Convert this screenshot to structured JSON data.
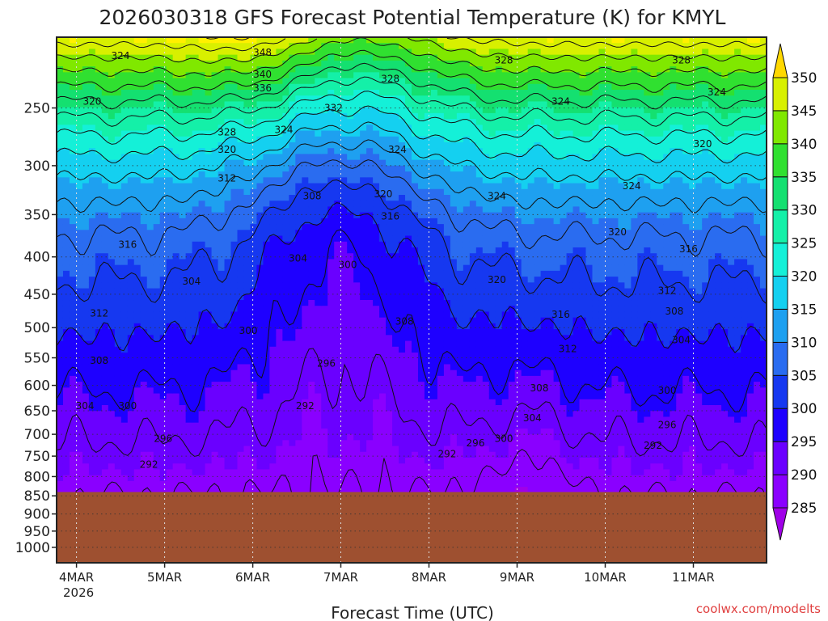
{
  "chart_data": {
    "type": "heatmap",
    "title": "2026030318 GFS Forecast Potential Temperature (K) for KMYL",
    "xlabel": "Forecast Time (UTC)",
    "ylabel": "",
    "x_ticks": [
      "4MAR",
      "5MAR",
      "6MAR",
      "7MAR",
      "8MAR",
      "9MAR",
      "10MAR",
      "11MAR"
    ],
    "x_year_label": "2026",
    "y_ticks": [
      250,
      300,
      350,
      400,
      450,
      500,
      550,
      600,
      650,
      700,
      750,
      800,
      850,
      900,
      950,
      1000
    ],
    "y_range": [
      1050,
      200
    ],
    "grid": true,
    "legend": "colorbar-right",
    "colorbar": {
      "levels": [
        285,
        290,
        295,
        300,
        305,
        310,
        315,
        320,
        325,
        330,
        335,
        340,
        345,
        350
      ],
      "colors": [
        "#8a00ff",
        "#6a00ff",
        "#1e00ff",
        "#1638f0",
        "#2a6cf0",
        "#1ea0f0",
        "#14d0f0",
        "#14f0d8",
        "#14f0a8",
        "#14e070",
        "#30e030",
        "#80e800",
        "#d8f000",
        "#fff000"
      ],
      "under_color": "#a000e8",
      "over_color": "#ffd800"
    },
    "ground_color": "#9e5030",
    "ground_top_hpa": 840,
    "contour_labels": [
      {
        "text": "348",
        "x": 0.29,
        "p": 210
      },
      {
        "text": "340",
        "x": 0.29,
        "p": 225
      },
      {
        "text": "336",
        "x": 0.29,
        "p": 235
      },
      {
        "text": "332",
        "x": 0.39,
        "p": 250
      },
      {
        "text": "328",
        "x": 0.24,
        "p": 270
      },
      {
        "text": "324",
        "x": 0.32,
        "p": 268
      },
      {
        "text": "320",
        "x": 0.24,
        "p": 285
      },
      {
        "text": "312",
        "x": 0.24,
        "p": 312
      },
      {
        "text": "308",
        "x": 0.36,
        "p": 330
      },
      {
        "text": "316",
        "x": 0.47,
        "p": 352
      },
      {
        "text": "304",
        "x": 0.34,
        "p": 402
      },
      {
        "text": "300",
        "x": 0.41,
        "p": 410
      },
      {
        "text": "304",
        "x": 0.19,
        "p": 432
      },
      {
        "text": "300",
        "x": 0.27,
        "p": 505
      },
      {
        "text": "296",
        "x": 0.38,
        "p": 560
      },
      {
        "text": "292",
        "x": 0.35,
        "p": 640
      },
      {
        "text": "296",
        "x": 0.15,
        "p": 710
      },
      {
        "text": "292",
        "x": 0.13,
        "p": 770
      },
      {
        "text": "300",
        "x": 0.1,
        "p": 640
      },
      {
        "text": "304",
        "x": 0.04,
        "p": 640
      },
      {
        "text": "308",
        "x": 0.06,
        "p": 555
      },
      {
        "text": "312",
        "x": 0.06,
        "p": 478
      },
      {
        "text": "316",
        "x": 0.1,
        "p": 385
      },
      {
        "text": "320",
        "x": 0.05,
        "p": 245
      },
      {
        "text": "324",
        "x": 0.09,
        "p": 212
      },
      {
        "text": "328",
        "x": 0.47,
        "p": 228
      },
      {
        "text": "324",
        "x": 0.48,
        "p": 285
      },
      {
        "text": "320",
        "x": 0.46,
        "p": 328
      },
      {
        "text": "308",
        "x": 0.49,
        "p": 490
      },
      {
        "text": "328",
        "x": 0.63,
        "p": 215
      },
      {
        "text": "324",
        "x": 0.62,
        "p": 330
      },
      {
        "text": "320",
        "x": 0.62,
        "p": 430
      },
      {
        "text": "292",
        "x": 0.55,
        "p": 745
      },
      {
        "text": "296",
        "x": 0.59,
        "p": 720
      },
      {
        "text": "300",
        "x": 0.63,
        "p": 710
      },
      {
        "text": "304",
        "x": 0.67,
        "p": 665
      },
      {
        "text": "308",
        "x": 0.68,
        "p": 605
      },
      {
        "text": "312",
        "x": 0.72,
        "p": 535
      },
      {
        "text": "316",
        "x": 0.71,
        "p": 480
      },
      {
        "text": "324",
        "x": 0.71,
        "p": 245
      },
      {
        "text": "320",
        "x": 0.79,
        "p": 370
      },
      {
        "text": "324",
        "x": 0.81,
        "p": 320
      },
      {
        "text": "328",
        "x": 0.88,
        "p": 215
      },
      {
        "text": "324",
        "x": 0.93,
        "p": 238
      },
      {
        "text": "320",
        "x": 0.91,
        "p": 280
      },
      {
        "text": "316",
        "x": 0.89,
        "p": 390
      },
      {
        "text": "312",
        "x": 0.86,
        "p": 445
      },
      {
        "text": "308",
        "x": 0.87,
        "p": 475
      },
      {
        "text": "304",
        "x": 0.88,
        "p": 520
      },
      {
        "text": "300",
        "x": 0.86,
        "p": 610
      },
      {
        "text": "296",
        "x": 0.86,
        "p": 680
      },
      {
        "text": "292",
        "x": 0.84,
        "p": 725
      }
    ]
  },
  "credit": "coolwx.com/modelts"
}
